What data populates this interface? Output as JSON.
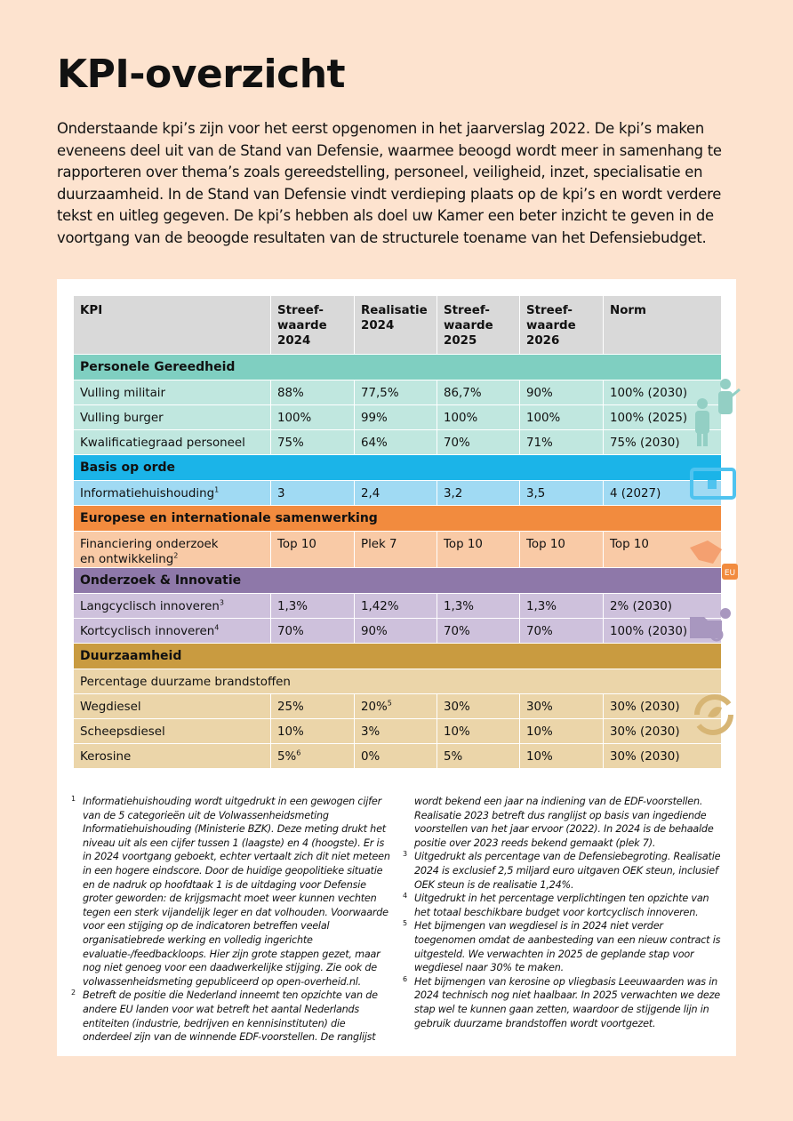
{
  "header": {
    "title": "KPI-overzicht",
    "intro": "Onderstaande kpi’s zijn voor het eerst opgenomen in het jaarverslag 2022. De kpi’s maken eveneens deel uit van de Stand van Defensie, waarmee beoogd wordt meer in samenhang te rapporteren over thema’s zoals gereedstelling, personeel, veiligheid, inzet, specialisatie en duurzaamheid. In de Stand van Defensie vindt verdieping plaats op de kpi’s en wordt verdere tekst en uitleg gegeven. De kpi’s hebben als doel uw Kamer een beter inzicht te geven in de voortgang van de beoogde resultaten van de structurele toename van het Defensiebudget."
  },
  "table": {
    "columns": [
      "KPI",
      "Streef-\nwaarde\n2024",
      "Realisatie\n2024",
      "Streef-\nwaarde\n2025",
      "Streef-\nwaarde\n2026",
      "Norm"
    ],
    "sections": [
      {
        "title": "Personele Gereedheid",
        "color": "#7fcfc1",
        "row_color": "#c0e7df",
        "rows": [
          [
            {
              "text": "Vulling militair"
            },
            {
              "text": "88%"
            },
            {
              "text": "77,5%"
            },
            {
              "text": "86,7%"
            },
            {
              "text": "90%"
            },
            {
              "text": "100% (2030)"
            }
          ],
          [
            {
              "text": "Vulling burger"
            },
            {
              "text": "100%"
            },
            {
              "text": "99%"
            },
            {
              "text": "100%"
            },
            {
              "text": "100%"
            },
            {
              "text": "100% (2025)"
            }
          ],
          [
            {
              "text": "Kwalificatiegraad personeel"
            },
            {
              "text": "75%"
            },
            {
              "text": "64%"
            },
            {
              "text": "70%"
            },
            {
              "text": "71%"
            },
            {
              "text": "75% (2030)"
            }
          ]
        ]
      },
      {
        "title": "Basis op orde",
        "color": "#1bb4e8",
        "row_color": "#a0daf3",
        "rows": [
          [
            {
              "text": "Informatiehuishouding",
              "sup": "1"
            },
            {
              "text": "3"
            },
            {
              "text": "2,4"
            },
            {
              "text": "3,2"
            },
            {
              "text": "3,5"
            },
            {
              "text": "4 (2027)"
            }
          ]
        ]
      },
      {
        "title": "Europese en internationale samenwerking",
        "color": "#f28b3e",
        "row_color": "#f9caa6",
        "rows": [
          [
            {
              "text": "Financiering onderzoek\nen ontwikkeling",
              "sup": "2"
            },
            {
              "text": "Top 10"
            },
            {
              "text": "Plek 7"
            },
            {
              "text": "Top 10"
            },
            {
              "text": "Top 10"
            },
            {
              "text": "Top 10"
            }
          ]
        ]
      },
      {
        "title": "Onderzoek & Innovatie",
        "color": "#8e78a9",
        "row_color": "#cec1dc",
        "rows": [
          [
            {
              "text": "Langcyclisch innoveren",
              "sup": "3"
            },
            {
              "text": "1,3%"
            },
            {
              "text": "1,42%"
            },
            {
              "text": "1,3%"
            },
            {
              "text": "1,3%"
            },
            {
              "text": "2% (2030)"
            }
          ],
          [
            {
              "text": "Kortcyclisch innoveren",
              "sup": "4"
            },
            {
              "text": "70%"
            },
            {
              "text": "90%"
            },
            {
              "text": "70%"
            },
            {
              "text": "70%"
            },
            {
              "text": "100% (2030)"
            }
          ]
        ]
      },
      {
        "title": "Duurzaamheid",
        "color": "#c99b40",
        "row_color": "#ebd5a9",
        "rows": [
          [
            {
              "text": "Percentage duurzame brandstoffen"
            }
          ],
          [
            {
              "text": "Wegdiesel"
            },
            {
              "text": "25%"
            },
            {
              "text": "20%",
              "sup": "5"
            },
            {
              "text": "30%"
            },
            {
              "text": "30%"
            },
            {
              "text": "30% (2030)"
            }
          ],
          [
            {
              "text": "Scheepsdiesel"
            },
            {
              "text": "10%"
            },
            {
              "text": "3%"
            },
            {
              "text": "10%"
            },
            {
              "text": "10%"
            },
            {
              "text": "30% (2030)"
            }
          ],
          [
            {
              "text": "Kerosine"
            },
            {
              "text": "5%",
              "sup": "6"
            },
            {
              "text": "0%"
            },
            {
              "text": "5%"
            },
            {
              "text": "10%"
            },
            {
              "text": "30% (2030)"
            }
          ]
        ]
      }
    ]
  },
  "footnotes": [
    {
      "num": "1",
      "text": "Informatiehuishouding wordt uitgedrukt in een gewogen cijfer van de 5 categorieën uit de Volwassenheidsmeting Informatiehuishouding (Ministerie BZK). Deze meting drukt het niveau uit als een cijfer tussen 1 (laagste) en 4 (hoogste). Er is in 2024 voortgang geboekt, echter vertaalt zich dit niet meteen in een hogere eindscore. Door de huidige geopolitieke situatie en de nadruk op hoofdtaak 1 is de uitdaging voor Defensie groter geworden: de krijgsmacht moet weer kunnen vechten tegen een sterk vijandelijk leger en dat volhouden. Voorwaarde voor een stijging op de indicatoren betreffen veelal organisatiebrede werking en volledig ingerichte evaluatie-/feedbackloops. Hier zijn grote stappen gezet, maar nog niet genoeg voor een daadwerkelijke stijging. Zie ook de volwassenheidsmeting gepubliceerd op open-overheid.nl."
    },
    {
      "num": "2",
      "text": "Betreft de positie die Nederland inneemt ten opzichte van de andere EU landen voor wat betreft het aantal Nederlands entiteiten (industrie, bedrijven en kennisinstituten) die onderdeel zijn van de winnende EDF-voorstellen. De ranglijst wordt bekend een jaar na indiening van de EDF-voorstellen. Realisatie 2023 betreft dus ranglijst op basis van ingediende voorstellen van het jaar ervoor (2022). In 2024 is de behaalde positie over 2023 reeds bekend gemaakt (plek 7)."
    },
    {
      "num": "3",
      "text": "Uitgedrukt als percentage van de Defensiebegroting. Realisatie 2024 is exclusief 2,5 miljard euro uitgaven OEK steun, inclusief OEK steun is de realisatie 1,24%."
    },
    {
      "num": "4",
      "text": "Uitgedrukt in het percentage verplichtingen ten opzichte van het totaal beschikbare budget voor kortcyclisch innoveren."
    },
    {
      "num": "5",
      "text": "Het bijmengen van wegdiesel is in 2024 niet verder toegenomen omdat de aanbesteding van een nieuw contract is uitgesteld. We verwachten in 2025 de geplande stap voor wegdiesel naar 30% te maken."
    },
    {
      "num": "6",
      "text": "Het bijmengen van kerosine op vliegbasis Leeuwaarden was in 2024 technisch nog niet haalbaar. In 2025 verwachten we deze stap wel te kunnen gaan zetten, waardoor de stijgende lijn in gebruik duurzame brandstoffen wordt voortgezet."
    }
  ]
}
